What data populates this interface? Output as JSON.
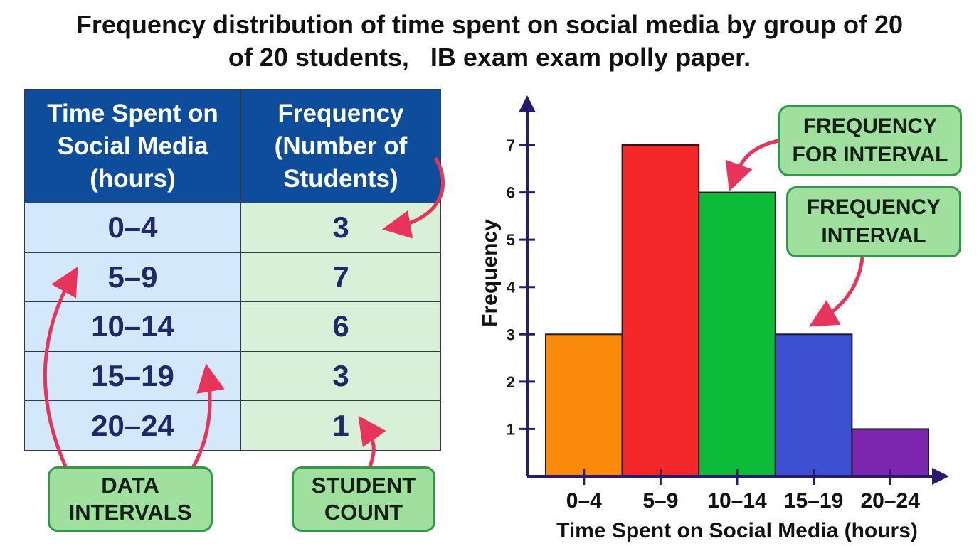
{
  "title": {
    "line1": "Frequency distribution of time spent on social media by group of 20",
    "line2": "of 20 students,   IB exam exam polly paper."
  },
  "table": {
    "headers": [
      "Time Spent on\nSocial Media\n(hours)",
      "Frequency\n(Number of\nStudents)"
    ],
    "rows": [
      {
        "interval": "0–4",
        "frequency": "3"
      },
      {
        "interval": "5–9",
        "frequency": "7"
      },
      {
        "interval": "10–14",
        "frequency": "6"
      },
      {
        "interval": "15–19",
        "frequency": "3"
      },
      {
        "interval": "20–24",
        "frequency": "1"
      }
    ]
  },
  "callouts": {
    "data_intervals": "DATA\nINTERVALS",
    "student_count": "STUDENT\nCOUNT",
    "frequency_for_interval": "FREQUENCY\nFOR INTERVAL",
    "frequency_interval": "FREQUENCY\nINTERVAL"
  },
  "colors": {
    "header_bg": "#0d4d9c",
    "interval_cell_bg": "#d4e8fb",
    "count_cell_bg": "#d8f0d8",
    "callout_bg": "#9fe09f",
    "callout_border": "#2f9a46",
    "arrow": "#e8335a",
    "axis": "#2a1a6e"
  },
  "chart_data": {
    "type": "bar",
    "title": "",
    "xlabel": "Time Spent on Social Media (hours)",
    "ylabel": "Frequency",
    "categories": [
      "0–4",
      "5–9",
      "10–14",
      "15–19",
      "20–24"
    ],
    "values": [
      3,
      7,
      6,
      3,
      1
    ],
    "bar_colors": [
      "#f98a0a",
      "#f42828",
      "#0cbb38",
      "#3d4fd2",
      "#7c25ae"
    ],
    "yticks": [
      1,
      2,
      3,
      4,
      5,
      6,
      7
    ],
    "ylim": [
      0,
      7
    ],
    "grid": false,
    "legend": "none"
  }
}
